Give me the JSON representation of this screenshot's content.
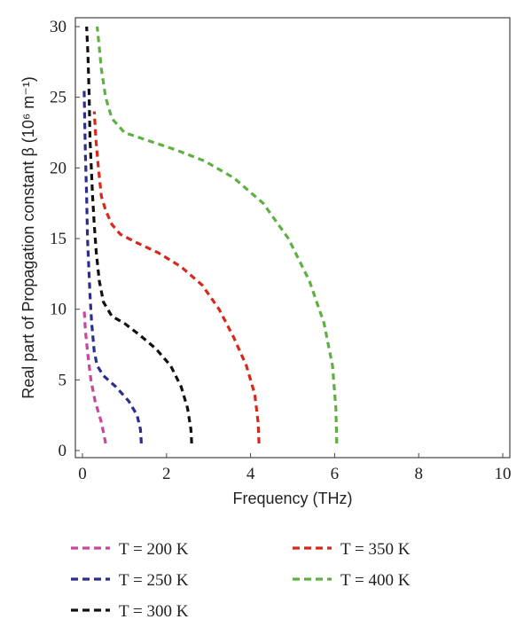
{
  "chart_data": {
    "type": "line",
    "xlabel": "Frequency (THz)",
    "ylabel": "Real part of Propagation constant β (10⁶ m⁻¹)",
    "xlim": [
      0,
      10
    ],
    "ylim": [
      0,
      30
    ],
    "x_ticks": [
      "0",
      "2",
      "4",
      "6",
      "8",
      "10"
    ],
    "y_ticks": [
      "0",
      "5",
      "10",
      "15",
      "20",
      "25",
      "30"
    ],
    "grid": false,
    "legend_position": "bottom",
    "series": [
      {
        "name": "T = 200 K",
        "color": "#c8479c",
        "x": [
          0.55,
          0.52,
          0.45,
          0.3,
          0.2,
          0.12,
          0.07,
          0.04
        ],
        "y": [
          0.5,
          1.0,
          2.0,
          3.5,
          5.0,
          7.0,
          8.5,
          10.0
        ]
      },
      {
        "name": "T = 250 K",
        "color": "#2b2e8c",
        "x": [
          1.4,
          1.38,
          1.3,
          1.1,
          0.8,
          0.5,
          0.35,
          0.28,
          0.22,
          0.18,
          0.15,
          0.12,
          0.1,
          0.07,
          0.04
        ],
        "y": [
          0.5,
          1.5,
          2.5,
          3.5,
          4.5,
          5.3,
          6.0,
          7.0,
          9.0,
          11.0,
          13.0,
          15.0,
          18.0,
          21.0,
          25.5
        ]
      },
      {
        "name": "T = 300 K",
        "color": "#111111",
        "x": [
          2.6,
          2.58,
          2.5,
          2.35,
          2.1,
          1.75,
          1.35,
          1.0,
          0.7,
          0.5,
          0.4,
          0.33,
          0.28,
          0.24,
          0.21,
          0.18,
          0.16,
          0.13,
          0.1
        ],
        "y": [
          0.5,
          1.5,
          3.0,
          4.5,
          6.0,
          7.2,
          8.2,
          9.0,
          9.5,
          10.5,
          12.0,
          14.0,
          16.0,
          18.0,
          20.0,
          22.0,
          25.0,
          28.0,
          30.0
        ]
      },
      {
        "name": "T = 350 K",
        "color": "#d4291c",
        "x": [
          4.2,
          4.18,
          4.1,
          3.9,
          3.6,
          3.25,
          2.85,
          2.35,
          1.8,
          1.3,
          0.9,
          0.7,
          0.55,
          0.45,
          0.38,
          0.32,
          0.28
        ],
        "y": [
          0.5,
          2.0,
          4.0,
          6.0,
          8.0,
          10.0,
          11.7,
          13.0,
          14.0,
          14.7,
          15.3,
          16.0,
          17.0,
          18.0,
          20.0,
          22.0,
          24.0
        ]
      },
      {
        "name": "T = 400 K",
        "color": "#5fb043",
        "x": [
          6.05,
          6.03,
          5.95,
          5.75,
          5.4,
          4.9,
          4.3,
          3.6,
          2.9,
          2.2,
          1.5,
          1.0,
          0.7,
          0.55,
          0.45,
          0.4,
          0.35
        ],
        "y": [
          0.5,
          3.0,
          6.0,
          9.0,
          12.0,
          15.0,
          17.5,
          19.3,
          20.5,
          21.3,
          22.0,
          22.5,
          23.5,
          25.0,
          27.0,
          28.5,
          30.0
        ]
      }
    ]
  }
}
